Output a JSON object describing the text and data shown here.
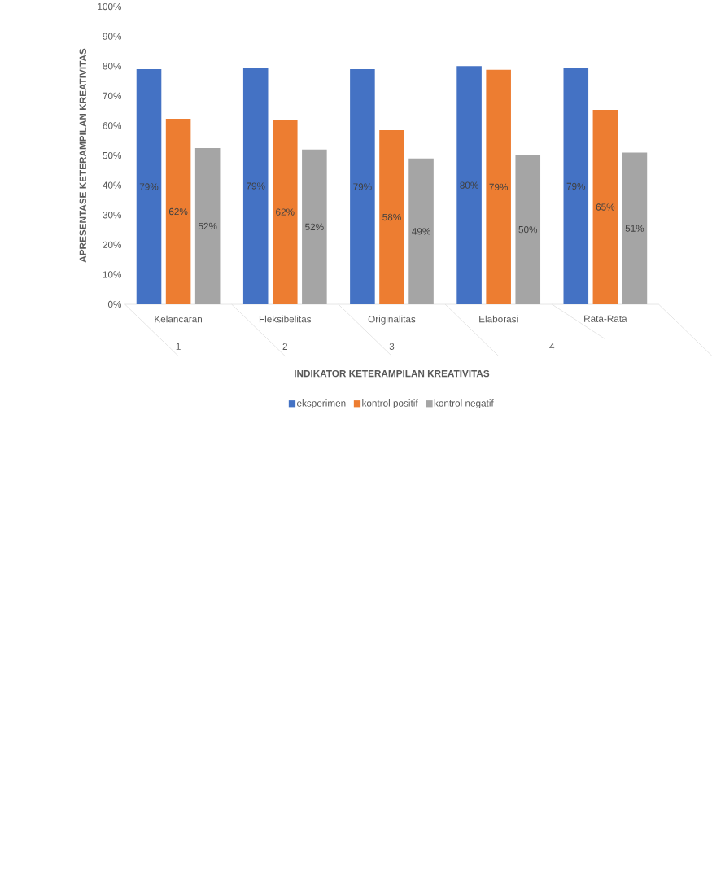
{
  "chart_data": {
    "type": "bar",
    "xlabel": "INDIKATOR KETERAMPILAN KREATIVITAS",
    "ylabel": "APRESENTASE KETERAMPILAN  KREATIVITAS",
    "categories": [
      "Kelancaran",
      "Fleksibelitas",
      "Originalitas",
      "Elaborasi",
      "Rata-Rata"
    ],
    "annotations": [
      "1",
      "2",
      "3",
      "4"
    ],
    "series": [
      {
        "name": "eksperimen",
        "color": "#4472c4",
        "values": [
          79,
          79.5,
          79,
          80,
          79.3
        ],
        "value_labels": [
          "79%",
          "79%",
          "79%",
          "80%",
          "79%"
        ]
      },
      {
        "name": "kontrol positif",
        "color": "#ed7d31",
        "values": [
          62.3,
          62,
          58.5,
          78.8,
          65.3
        ],
        "value_labels": [
          "62%",
          "62%",
          "58%",
          "79%",
          "65%"
        ]
      },
      {
        "name": "kontrol negatif",
        "color": "#a5a5a5",
        "values": [
          52.5,
          52,
          49,
          50.2,
          51
        ],
        "value_labels": [
          "52%",
          "52%",
          "49%",
          "50%",
          "51%"
        ]
      }
    ],
    "ylim": [
      0,
      100
    ],
    "yticks": [
      {
        "value": 0,
        "label": "0%"
      },
      {
        "value": 10,
        "label": "10%"
      },
      {
        "value": 20,
        "label": "20%"
      },
      {
        "value": 30,
        "label": "30%"
      },
      {
        "value": 40,
        "label": "40%"
      },
      {
        "value": 50,
        "label": "50%"
      },
      {
        "value": 60,
        "label": "60%"
      },
      {
        "value": 70,
        "label": "70%"
      },
      {
        "value": 80,
        "label": "80%"
      },
      {
        "value": 90,
        "label": "90%"
      },
      {
        "value": 100,
        "label": "100%"
      }
    ],
    "legend": "bottom",
    "grid": false
  }
}
